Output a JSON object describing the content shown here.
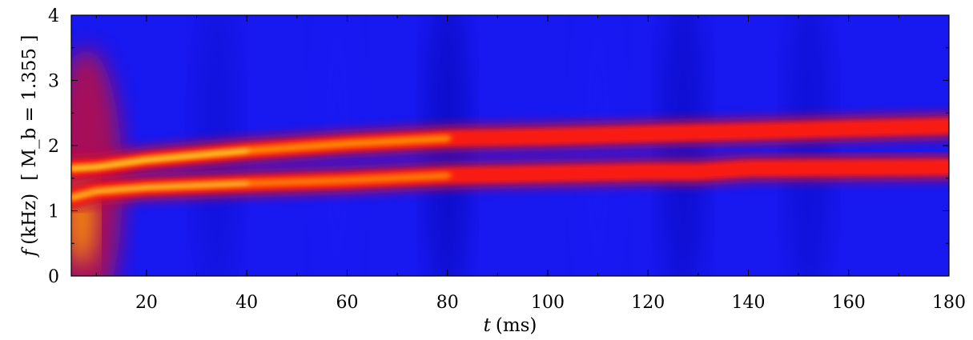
{
  "chart_data": {
    "type": "heatmap",
    "title": "",
    "xlabel": {
      "var": "t",
      "unit": "(ms)"
    },
    "ylabel": {
      "var": "f",
      "unit": "(kHz)",
      "param": "[ M_b = 1.355 ]"
    },
    "xlim": [
      5,
      180
    ],
    "ylim": [
      0,
      4
    ],
    "xticks": [
      "20",
      "40",
      "60",
      "80",
      "100",
      "120",
      "140",
      "160",
      "180"
    ],
    "xtick_values": [
      20,
      40,
      60,
      80,
      100,
      120,
      140,
      160,
      180
    ],
    "yticks": [
      "0",
      "1",
      "2",
      "3",
      "4"
    ],
    "ytick_values": [
      0,
      1,
      2,
      3,
      4
    ],
    "colormap": [
      "#0000a0",
      "#1a1aff",
      "#c01040",
      "#ff1a10",
      "#ff9a00",
      "#ffe040"
    ],
    "background_color": "#1818f0",
    "ridges": [
      {
        "name": "",
        "points": [
          [
            5,
            1.65
          ],
          [
            10,
            1.67
          ],
          [
            20,
            1.78
          ],
          [
            40,
            1.92
          ],
          [
            60,
            2.03
          ],
          [
            80,
            2.11
          ],
          [
            100,
            2.14
          ],
          [
            120,
            2.18
          ],
          [
            140,
            2.22
          ],
          [
            160,
            2.26
          ],
          [
            180,
            2.3
          ]
        ],
        "intensity": 0.95
      },
      {
        "name": "",
        "points": [
          [
            5,
            1.2
          ],
          [
            10,
            1.3
          ],
          [
            20,
            1.36
          ],
          [
            40,
            1.42
          ],
          [
            60,
            1.47
          ],
          [
            80,
            1.54
          ],
          [
            100,
            1.57
          ],
          [
            120,
            1.6
          ],
          [
            130,
            1.6
          ],
          [
            140,
            1.65
          ],
          [
            160,
            1.66
          ],
          [
            180,
            1.67
          ]
        ],
        "intensity": 0.8
      }
    ]
  }
}
